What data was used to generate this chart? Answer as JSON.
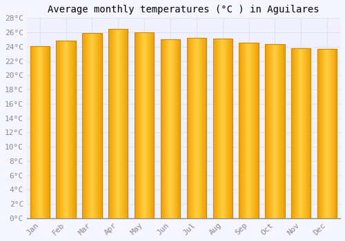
{
  "months": [
    "Jan",
    "Feb",
    "Mar",
    "Apr",
    "May",
    "Jun",
    "Jul",
    "Aug",
    "Sep",
    "Oct",
    "Nov",
    "Dec"
  ],
  "temperatures": [
    24.1,
    24.8,
    25.9,
    26.5,
    26.0,
    25.0,
    25.2,
    25.1,
    24.6,
    24.4,
    23.8,
    23.7
  ],
  "bar_color_center": "#FFD040",
  "bar_color_edge": "#F0A000",
  "bar_border_color": "#CC8800",
  "title": "Average monthly temperatures (°C ) in Aguilares",
  "ylim": [
    0,
    28
  ],
  "ytick_step": 2,
  "background_color": "#F5F5FF",
  "plot_bg_color": "#F0F0FF",
  "grid_color": "#E0E0EE",
  "title_fontsize": 10,
  "tick_fontsize": 8,
  "font_family": "monospace"
}
